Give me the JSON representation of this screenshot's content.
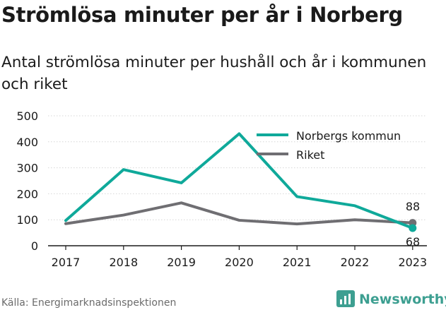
{
  "chart_data": {
    "type": "line",
    "title": "Strömlösa minuter per år i Norberg",
    "subtitle": "Antal strömlösa minuter per hushåll och år i kommunen och riket",
    "categories": [
      "2017",
      "2018",
      "2019",
      "2020",
      "2021",
      "2022",
      "2023"
    ],
    "series": [
      {
        "name": "Norbergs kommun",
        "color": "#0fa99a",
        "values": [
          97,
          293,
          242,
          431,
          189,
          154,
          68
        ]
      },
      {
        "name": "Riket",
        "color": "#6f6e72",
        "values": [
          85,
          118,
          165,
          98,
          84,
          100,
          88
        ]
      }
    ],
    "yticks": [
      "0",
      "100",
      "200",
      "300",
      "400",
      "500"
    ],
    "ylim": [
      0,
      500
    ],
    "grid": true,
    "legend_position": "top-right",
    "end_labels": {
      "norberg": "68",
      "riket": "88"
    }
  },
  "footer": {
    "source": "Källa: Energimarknadsinspektionen",
    "brand": "Newsworthy",
    "brand_color": "#3d9f91",
    "brand_icon": "bar-chart-logo-icon"
  }
}
